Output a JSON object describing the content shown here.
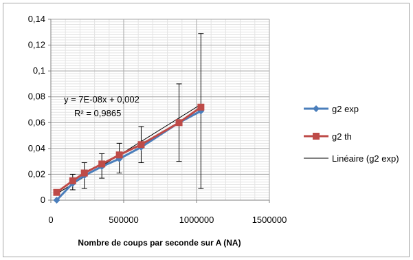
{
  "chart_data": {
    "type": "line",
    "title": "",
    "xlabel": "Nombre de coups  par seconde sur A (NA)",
    "ylabel": "",
    "xlim": [
      0,
      1500000
    ],
    "ylim": [
      0,
      0.14
    ],
    "x_ticks": [
      0,
      500000,
      1000000,
      1500000
    ],
    "x_tick_labels": [
      "0",
      "500000",
      "1000000",
      "1500000"
    ],
    "y_ticks": [
      0,
      0.02,
      0.04,
      0.06,
      0.08,
      0.1,
      0.12,
      0.14
    ],
    "y_tick_labels": [
      "0",
      "0,02",
      "0,04",
      "0,06",
      "0,08",
      "0,1",
      "0,12",
      "0,14"
    ],
    "grid": true,
    "legend_position": "right",
    "series": [
      {
        "name": "g2 exp",
        "color": "#4a7ebb",
        "marker": "diamond",
        "x": [
          40000,
          150000,
          230000,
          350000,
          470000,
          620000,
          880000,
          1030000
        ],
        "y": [
          0.0,
          0.013,
          0.019,
          0.026,
          0.032,
          0.041,
          0.06,
          0.069
        ],
        "err_low": [
          0.0,
          0.005,
          0.01,
          0.009,
          0.011,
          0.012,
          0.03,
          0.06
        ],
        "err_high": [
          0.0,
          0.007,
          0.01,
          0.01,
          0.012,
          0.016,
          0.03,
          0.06
        ]
      },
      {
        "name": "g2 th",
        "color": "#be4b48",
        "marker": "square",
        "x": [
          40000,
          150000,
          230000,
          350000,
          470000,
          620000,
          880000,
          1030000
        ],
        "y": [
          0.006,
          0.015,
          0.021,
          0.028,
          0.035,
          0.043,
          0.06,
          0.072
        ]
      },
      {
        "name": "Linéaire (g2 exp)",
        "color": "#000000",
        "type": "trendline",
        "slope": 7e-08,
        "intercept": 0.002
      }
    ],
    "annotations": [
      "y = 7E-08x + 0,002",
      "R² = 0,9865"
    ]
  }
}
